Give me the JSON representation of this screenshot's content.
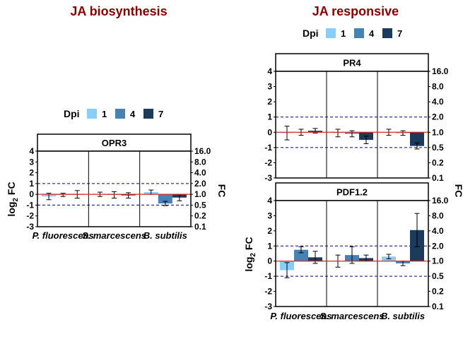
{
  "chart_data": [
    {
      "type": "bar",
      "title": "JA biosynthesis",
      "legend": {
        "title": "Dpi",
        "labels": [
          "1",
          "4",
          "7"
        ],
        "placement": "top"
      },
      "colors": [
        "#87CEFA",
        "#4682B4",
        "#1B3A5C"
      ],
      "ylabel": "log",
      "ylabel_sub": "2",
      "ylabel_tail": " FC",
      "y2label": "FC",
      "ylim": [
        -3,
        4
      ],
      "yticks": [
        "-3",
        "-2",
        "-1",
        "0",
        "1",
        "2",
        "3",
        "4"
      ],
      "y2ticks": [
        "0.1",
        "0.2",
        "0.5",
        "1.0",
        "2.0",
        "4.0",
        "8.0",
        "16.0"
      ],
      "reference_lines": {
        "solid": 0,
        "dashed": [
          1,
          -1
        ],
        "solid_color": "#d62728",
        "dashed_color": "#00008b"
      },
      "categories": [
        "P. fluorescens",
        "S. marcescens",
        "B. subtilis"
      ],
      "panels": [
        {
          "name": "OPR3",
          "series": [
            {
              "name": "1",
              "values": [
                -0.2,
                0.0,
                0.2
              ],
              "errors": [
                0.3,
                0.2,
                0.2
              ]
            },
            {
              "name": "4",
              "values": [
                -0.05,
                -0.05,
                -0.85
              ],
              "errors": [
                0.15,
                0.3,
                0.2
              ]
            },
            {
              "name": "7",
              "values": [
                0.0,
                -0.1,
                -0.3
              ],
              "errors": [
                0.35,
                0.25,
                0.3
              ]
            }
          ]
        }
      ]
    },
    {
      "type": "bar",
      "title": "JA responsive",
      "legend": {
        "title": "Dpi",
        "labels": [
          "1",
          "4",
          "7"
        ],
        "placement": "top"
      },
      "colors": [
        "#87CEFA",
        "#4682B4",
        "#1B3A5C"
      ],
      "ylabel": "log",
      "ylabel_sub": "2",
      "ylabel_tail": " FC",
      "y2label": "FC",
      "ylim": [
        -3,
        4
      ],
      "yticks": [
        "-3",
        "-2",
        "-1",
        "0",
        "1",
        "2",
        "3",
        "4"
      ],
      "y2ticks": [
        "0.1",
        "0.2",
        "0.5",
        "1.0",
        "2.0",
        "4.0",
        "8.0",
        "16.0"
      ],
      "reference_lines": {
        "solid": 0,
        "dashed": [
          1,
          -1
        ],
        "solid_color": "#d62728",
        "dashed_color": "#00008b"
      },
      "categories": [
        "P. fluorescens",
        "S. marcescens",
        "B. subtilis"
      ],
      "panels": [
        {
          "name": "PR4",
          "series": [
            {
              "name": "1",
              "values": [
                -0.05,
                -0.05,
                0.0
              ],
              "errors": [
                0.45,
                0.25,
                0.2
              ]
            },
            {
              "name": "4",
              "values": [
                0.0,
                -0.1,
                -0.05
              ],
              "errors": [
                0.2,
                0.2,
                0.15
              ]
            },
            {
              "name": "7",
              "values": [
                0.1,
                -0.5,
                -0.9
              ],
              "errors": [
                0.15,
                0.25,
                0.2
              ]
            }
          ]
        },
        {
          "name": "PDF1.2",
          "series": [
            {
              "name": "1",
              "values": [
                -0.6,
                0.0,
                0.3
              ],
              "errors": [
                0.5,
                0.4,
                0.15
              ]
            },
            {
              "name": "4",
              "values": [
                0.75,
                0.4,
                -0.15
              ],
              "errors": [
                0.2,
                0.55,
                0.15
              ]
            },
            {
              "name": "7",
              "values": [
                0.25,
                0.2,
                2.05
              ],
              "errors": [
                0.4,
                0.2,
                1.1
              ]
            }
          ]
        }
      ]
    }
  ]
}
